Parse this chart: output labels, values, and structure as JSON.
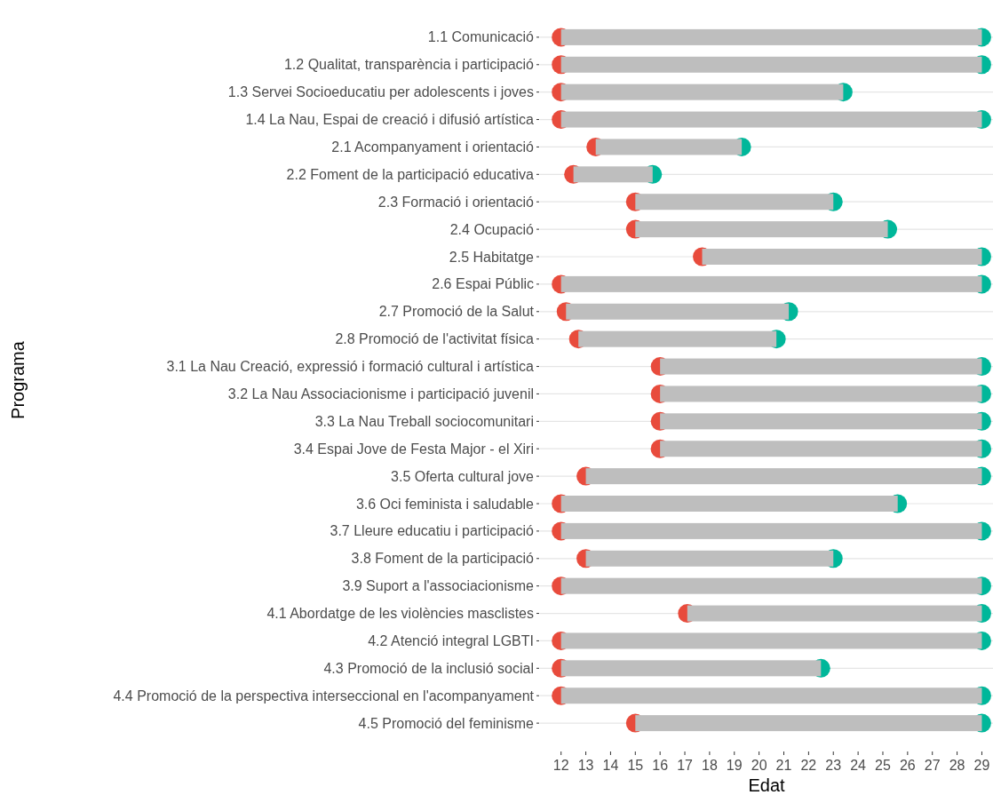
{
  "chart_data": {
    "type": "bar",
    "orientation": "horizontal",
    "xlabel": "Edat",
    "ylabel": "Programa",
    "categories": [
      "1.1 Comunicació",
      "1.2 Qualitat, transparència i participació",
      "1.3 Servei Socioeducatiu per adolescents i joves",
      "1.4 La Nau, Espai de creació i difusió artística",
      "2.1 Acompanyament i orientació",
      "2.2 Foment de la participació educativa",
      "2.3 Formació i orientació",
      "2.4 Ocupació",
      "2.5 Habitatge",
      "2.6 Espai Públic",
      "2.7 Promoció de la Salut",
      "2.8 Promoció de l'activitat física",
      "3.1 La Nau Creació, expressió i formació cultural i artística",
      "3.2 La Nau Associacionisme i participació juvenil",
      "3.3 La Nau Treball sociocomunitari",
      "3.4 Espai Jove de Festa Major - el Xiri",
      "3.5 Oferta cultural jove",
      "3.6 Oci feminista i saludable",
      "3.7 Lleure educatiu i participació",
      "3.8 Foment de la participació",
      "3.9 Suport a l'associacionisme",
      "4.1 Abordatge de les violències masclistes",
      "4.2 Atenció integral LGBTI",
      "4.3 Promoció de la inclusió social",
      "4.4 Promoció de la perspectiva interseccional en l'acompanyament",
      "4.5 Promoció del feminisme"
    ],
    "series": [
      {
        "type": "bar",
        "color": "#bebebe",
        "base": [
          12,
          12,
          12,
          12,
          13.4,
          12.5,
          15,
          15,
          17.7,
          12,
          12.2,
          12.7,
          16,
          16,
          16,
          16,
          13,
          12,
          12,
          13,
          12,
          17.1,
          12,
          12,
          12,
          15
        ],
        "values": [
          17,
          17,
          11.4,
          17,
          5.9,
          3.2,
          8,
          10.2,
          11.3,
          17,
          9,
          8,
          13,
          13,
          13,
          13,
          16,
          13.6,
          17,
          10,
          17,
          11.9,
          17,
          10.5,
          17,
          14
        ]
      },
      {
        "type": "scatter",
        "color": "#e84b3c",
        "values": [
          12,
          12,
          12,
          12,
          13.4,
          12.5,
          15,
          15,
          17.7,
          12,
          12.2,
          12.7,
          16,
          16,
          16,
          16,
          13,
          12,
          12,
          13,
          12,
          17.1,
          12,
          12,
          12,
          15
        ]
      },
      {
        "type": "scatter",
        "color": "#00b79a",
        "values": [
          29,
          29,
          23.4,
          29,
          19.3,
          15.7,
          23,
          25.2,
          29,
          29,
          21.2,
          20.7,
          29,
          29,
          29,
          29,
          29,
          25.6,
          29,
          23,
          29,
          29,
          29,
          22.5,
          29,
          29
        ]
      }
    ],
    "xlim": [
      11.15,
      29.45
    ],
    "xticks": [
      12,
      13,
      14,
      15,
      16,
      17,
      18,
      19,
      20,
      21,
      22,
      23,
      24,
      25,
      26,
      27,
      28,
      29
    ],
    "grid": "y",
    "marker": "circle"
  }
}
